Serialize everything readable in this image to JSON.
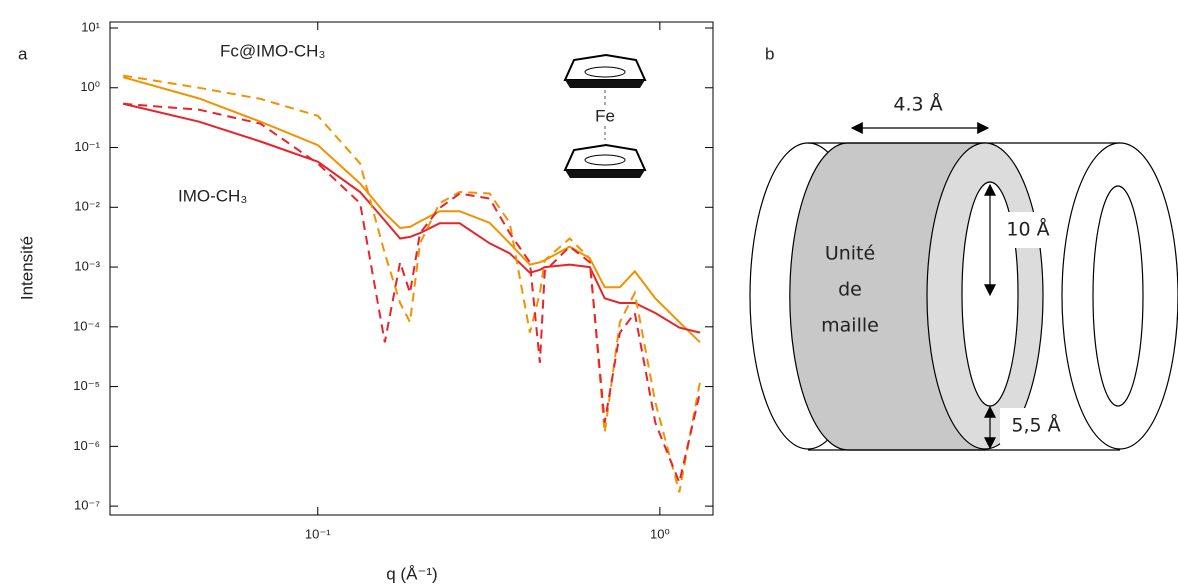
{
  "panel_labels": [
    "a",
    "b"
  ],
  "chart_data": {
    "type": "line",
    "y_label": "Intensité",
    "x_label": "q (Å⁻¹)",
    "inset_label": "Fe",
    "log_x": true,
    "log_y": true,
    "xlim": [
      0.0247,
      1.43
    ],
    "ylim": [
      7.1e-08,
      12.6
    ],
    "xticks": [
      {
        "value": 0.1,
        "label": "10⁻¹"
      },
      {
        "value": 1,
        "label": "10⁰"
      }
    ],
    "yticks": [
      {
        "value": 10,
        "label": "10¹"
      },
      {
        "value": 1,
        "label": "10⁰"
      },
      {
        "value": 0.1,
        "label": "10⁻¹"
      },
      {
        "value": 0.01,
        "label": "10⁻²"
      },
      {
        "value": 0.001,
        "label": "10⁻³"
      },
      {
        "value": 0.0001,
        "label": "10⁻⁴"
      },
      {
        "value": 1e-05,
        "label": "10⁻⁵"
      },
      {
        "value": 1e-06,
        "label": "10⁻⁶"
      },
      {
        "value": 1e-07,
        "label": "10⁻⁷"
      }
    ],
    "x": [
      0.027,
      0.045,
      0.068,
      0.1,
      0.133,
      0.157,
      0.174,
      0.186,
      0.199,
      0.227,
      0.26,
      0.318,
      0.364,
      0.417,
      0.446,
      0.461,
      0.545,
      0.624,
      0.69,
      0.764,
      0.845,
      0.97,
      1.14,
      1.31
    ],
    "series": [
      {
        "name": "Fc@IMO-CH₃",
        "color": "#f39200",
        "dashed": false,
        "values": [
          1.5,
          0.66,
          0.27,
          0.11,
          0.025,
          0.008,
          0.0045,
          0.0047,
          0.0058,
          0.0086,
          0.0086,
          0.0055,
          0.0025,
          0.0011,
          0.0012,
          0.0013,
          0.0022,
          0.0014,
          0.00046,
          0.00046,
          0.00085,
          0.0003,
          0.00012,
          5.5e-05
        ]
      },
      {
        "name": "IMO-CH₃",
        "color": "#e8242a",
        "dashed": false,
        "values": [
          0.54,
          0.27,
          0.126,
          0.058,
          0.018,
          0.006,
          0.003,
          0.0032,
          0.0037,
          0.0054,
          0.0054,
          0.0025,
          0.0017,
          0.0008,
          0.0009,
          0.001,
          0.0011,
          0.001,
          0.0003,
          0.00025,
          0.00025,
          0.00017,
          9.7e-05,
          8e-05
        ]
      },
      {
        "color": "#f39200",
        "dashed": true,
        "values": [
          1.6,
          1.0,
          0.65,
          0.34,
          0.054,
          0.0017,
          0.00025,
          0.00012,
          0.0025,
          0.0117,
          0.018,
          0.017,
          0.0055,
          8e-05,
          0.00037,
          0.0013,
          0.003,
          0.0014,
          1.7e-06,
          0.00012,
          0.00037,
          5.5e-06,
          1.7e-07,
          1.2e-05
        ]
      },
      {
        "color": "#e8242a",
        "dashed": true,
        "values": [
          0.54,
          0.43,
          0.25,
          0.054,
          0.0117,
          5.5e-05,
          0.0012,
          0.00037,
          0.0037,
          0.0097,
          0.017,
          0.014,
          0.0037,
          0.0012,
          2.5e-05,
          0.00085,
          0.0022,
          0.0012,
          2.5e-06,
          8e-05,
          0.00017,
          2.5e-06,
          2.5e-07,
          8e-06
        ]
      }
    ]
  },
  "diagram": {
    "width_label": "4.3 Å",
    "pore_label": "10 Å",
    "wall_label": "5,5 Å",
    "cell_label": [
      "Unité",
      "de",
      "maille"
    ]
  }
}
